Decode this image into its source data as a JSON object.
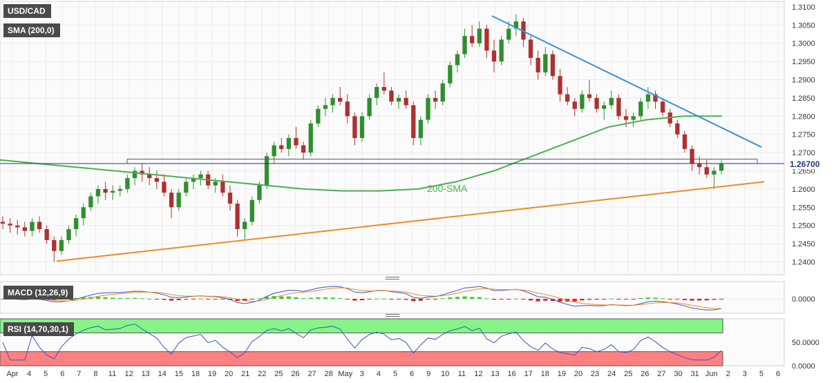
{
  "chart_data": {
    "type": "candlestick",
    "symbol": "USD/CAD",
    "indicator_sma": "SMA (200,0)",
    "sma_annotation": "200-SMA",
    "last_price": "1.26700",
    "y_ticks": [
      "1.3100",
      "1.3050",
      "1.3000",
      "1.2950",
      "1.2900",
      "1.2850",
      "1.2800",
      "1.2750",
      "1.2700",
      "1.2650",
      "1.2600",
      "1.2550",
      "1.2500",
      "1.2450",
      "1.2400"
    ],
    "y_range": [
      1.2365,
      1.3115
    ],
    "x_ticks": [
      "Apr",
      "4",
      "5",
      "6",
      "7",
      "8",
      "11",
      "12",
      "13",
      "14",
      "15",
      "18",
      "19",
      "20",
      "21",
      "22",
      "25",
      "26",
      "27",
      "28",
      "May",
      "3",
      "4",
      "5",
      "6",
      "9",
      "10",
      "11",
      "12",
      "13",
      "16",
      "17",
      "18",
      "19",
      "20",
      "23",
      "24",
      "25",
      "26",
      "27",
      "30",
      "31",
      "Jun",
      "2",
      "3",
      "5",
      "6"
    ],
    "ohlc": [
      [
        1.251,
        1.2525,
        1.249,
        1.2505
      ],
      [
        1.2505,
        1.252,
        1.248,
        1.25
      ],
      [
        1.25,
        1.2515,
        1.2475,
        1.2495
      ],
      [
        1.2495,
        1.251,
        1.247,
        1.2485
      ],
      [
        1.2485,
        1.252,
        1.247,
        1.251
      ],
      [
        1.251,
        1.2525,
        1.248,
        1.249
      ],
      [
        1.249,
        1.25,
        1.245,
        1.246
      ],
      [
        1.246,
        1.247,
        1.24,
        1.243
      ],
      [
        1.243,
        1.247,
        1.242,
        1.246
      ],
      [
        1.246,
        1.25,
        1.245,
        1.249
      ],
      [
        1.249,
        1.253,
        1.247,
        1.252
      ],
      [
        1.252,
        1.256,
        1.25,
        1.255
      ],
      [
        1.255,
        1.259,
        1.254,
        1.258
      ],
      [
        1.258,
        1.261,
        1.256,
        1.26
      ],
      [
        1.26,
        1.262,
        1.257,
        1.259
      ],
      [
        1.259,
        1.261,
        1.257,
        1.2595
      ],
      [
        1.2595,
        1.261,
        1.258,
        1.26
      ],
      [
        1.26,
        1.264,
        1.259,
        1.263
      ],
      [
        1.263,
        1.266,
        1.261,
        1.265
      ],
      [
        1.265,
        1.267,
        1.262,
        1.264
      ],
      [
        1.264,
        1.266,
        1.261,
        1.263
      ],
      [
        1.263,
        1.265,
        1.26,
        1.262
      ],
      [
        1.262,
        1.264,
        1.258,
        1.259
      ],
      [
        1.259,
        1.26,
        1.252,
        1.255
      ],
      [
        1.255,
        1.26,
        1.254,
        1.259
      ],
      [
        1.259,
        1.263,
        1.258,
        1.262
      ],
      [
        1.262,
        1.264,
        1.26,
        1.263
      ],
      [
        1.263,
        1.265,
        1.261,
        1.264
      ],
      [
        1.264,
        1.265,
        1.26,
        1.261
      ],
      [
        1.261,
        1.263,
        1.259,
        1.262
      ],
      [
        1.262,
        1.264,
        1.258,
        1.259
      ],
      [
        1.259,
        1.261,
        1.254,
        1.256
      ],
      [
        1.256,
        1.257,
        1.247,
        1.249
      ],
      [
        1.249,
        1.252,
        1.246,
        1.251
      ],
      [
        1.251,
        1.258,
        1.25,
        1.257
      ],
      [
        1.257,
        1.262,
        1.256,
        1.261
      ],
      [
        1.261,
        1.27,
        1.26,
        1.269
      ],
      [
        1.269,
        1.273,
        1.267,
        1.272
      ],
      [
        1.272,
        1.274,
        1.27,
        1.271
      ],
      [
        1.271,
        1.275,
        1.269,
        1.274
      ],
      [
        1.274,
        1.277,
        1.271,
        1.272
      ],
      [
        1.272,
        1.273,
        1.268,
        1.27
      ],
      [
        1.27,
        1.279,
        1.269,
        1.278
      ],
      [
        1.278,
        1.283,
        1.277,
        1.282
      ],
      [
        1.282,
        1.285,
        1.28,
        1.283
      ],
      [
        1.283,
        1.286,
        1.281,
        1.285
      ],
      [
        1.285,
        1.288,
        1.283,
        1.284
      ],
      [
        1.284,
        1.286,
        1.278,
        1.28
      ],
      [
        1.28,
        1.281,
        1.272,
        1.274
      ],
      [
        1.274,
        1.281,
        1.273,
        1.28
      ],
      [
        1.28,
        1.286,
        1.279,
        1.285
      ],
      [
        1.285,
        1.289,
        1.283,
        1.288
      ],
      [
        1.288,
        1.292,
        1.286,
        1.287
      ],
      [
        1.287,
        1.288,
        1.283,
        1.284
      ],
      [
        1.284,
        1.286,
        1.282,
        1.285
      ],
      [
        1.285,
        1.287,
        1.282,
        1.283
      ],
      [
        1.283,
        1.284,
        1.272,
        1.274
      ],
      [
        1.274,
        1.28,
        1.272,
        1.279
      ],
      [
        1.279,
        1.286,
        1.278,
        1.285
      ],
      [
        1.285,
        1.287,
        1.282,
        1.284
      ],
      [
        1.284,
        1.29,
        1.283,
        1.289
      ],
      [
        1.289,
        1.295,
        1.288,
        1.294
      ],
      [
        1.294,
        1.298,
        1.292,
        1.297
      ],
      [
        1.297,
        1.304,
        1.296,
        1.302
      ],
      [
        1.302,
        1.305,
        1.299,
        1.3
      ],
      [
        1.3,
        1.306,
        1.299,
        1.304
      ],
      [
        1.304,
        1.305,
        1.296,
        1.298
      ],
      [
        1.298,
        1.301,
        1.292,
        1.295
      ],
      [
        1.295,
        1.302,
        1.294,
        1.301
      ],
      [
        1.301,
        1.306,
        1.3,
        1.304
      ],
      [
        1.304,
        1.308,
        1.302,
        1.306
      ],
      [
        1.306,
        1.307,
        1.299,
        1.301
      ],
      [
        1.301,
        1.302,
        1.294,
        1.296
      ],
      [
        1.296,
        1.298,
        1.29,
        1.292
      ],
      [
        1.292,
        1.299,
        1.291,
        1.297
      ],
      [
        1.297,
        1.298,
        1.29,
        1.291
      ],
      [
        1.291,
        1.293,
        1.284,
        1.286
      ],
      [
        1.286,
        1.288,
        1.283,
        1.284
      ],
      [
        1.284,
        1.285,
        1.28,
        1.282
      ],
      [
        1.282,
        1.287,
        1.281,
        1.286
      ],
      [
        1.286,
        1.29,
        1.284,
        1.285
      ],
      [
        1.285,
        1.286,
        1.281,
        1.282
      ],
      [
        1.282,
        1.284,
        1.279,
        1.283
      ],
      [
        1.283,
        1.287,
        1.282,
        1.285
      ],
      [
        1.285,
        1.286,
        1.279,
        1.28
      ],
      [
        1.28,
        1.282,
        1.277,
        1.279
      ],
      [
        1.279,
        1.281,
        1.277,
        1.28
      ],
      [
        1.28,
        1.285,
        1.279,
        1.284
      ],
      [
        1.284,
        1.288,
        1.282,
        1.286
      ],
      [
        1.286,
        1.287,
        1.282,
        1.284
      ],
      [
        1.284,
        1.285,
        1.28,
        1.281
      ],
      [
        1.281,
        1.282,
        1.277,
        1.278
      ],
      [
        1.278,
        1.279,
        1.274,
        1.275
      ],
      [
        1.275,
        1.276,
        1.27,
        1.271
      ],
      [
        1.271,
        1.272,
        1.265,
        1.267
      ],
      [
        1.267,
        1.269,
        1.264,
        1.266
      ],
      [
        1.266,
        1.268,
        1.263,
        1.264
      ],
      [
        1.264,
        1.266,
        1.26,
        1.265
      ],
      [
        1.265,
        1.268,
        1.264,
        1.267
      ]
    ],
    "sma_200": [
      1.268,
      1.267,
      1.266,
      1.265,
      1.264,
      1.263,
      1.262,
      1.261,
      1.26,
      1.2595,
      1.2595,
      1.26,
      1.262,
      1.265,
      1.269,
      1.273,
      1.277,
      1.279,
      1.28,
      1.28
    ],
    "support_line_ends": [
      1.2402,
      1.262
    ],
    "resistance_line_ends": [
      1.3075,
      1.2715
    ],
    "range_box": [
      1.267,
      1.2682
    ],
    "macd_label": "MACD (12,26,9)",
    "macd_tick": "0.0000",
    "rsi_label": "RSI (14,70,30,1)",
    "rsi_ticks": [
      "50.0000",
      "0.0000"
    ],
    "rsi_range": [
      0,
      100
    ],
    "rsi_overbought": 70,
    "rsi_oversold": 30
  },
  "colors": {
    "bull": "#2f8f2f",
    "bear": "#b03030",
    "sma": "#4caf50",
    "support": "#f08a24",
    "resistance": "#3a8fe0",
    "macd_line": "#3355cc",
    "signal_line": "#f08a24",
    "rsi_line": "#3355cc",
    "overbought_zone": "#86f486",
    "oversold_zone": "#ff8080",
    "price_line": "#1f3a8a"
  }
}
